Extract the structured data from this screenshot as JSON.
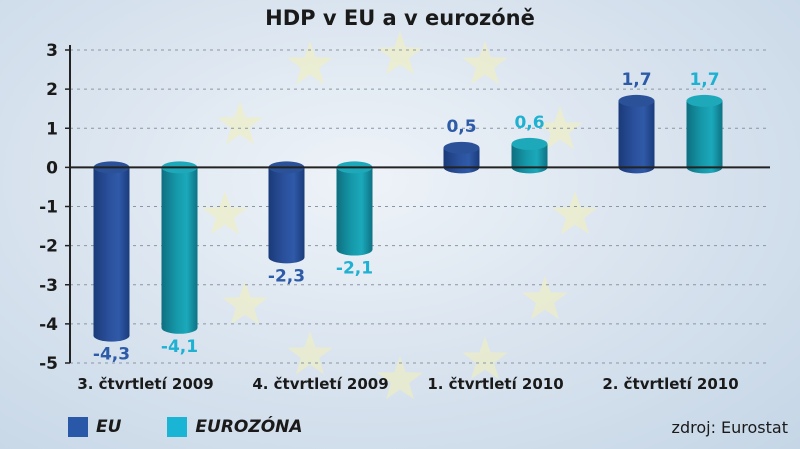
{
  "chart_data": {
    "type": "bar",
    "title": "HDP v EU a v eurozóně",
    "categories": [
      "3. čtvrtletí 2009",
      "4. čtvrtletí 2009",
      "1. čtvrtletí 2010",
      "2. čtvrtletí 2010"
    ],
    "series": [
      {
        "name": "EU",
        "values": [
          -4.3,
          -2.3,
          0.5,
          1.7
        ],
        "labels": [
          "-4,3",
          "-2,3",
          "0,5",
          "1,7"
        ],
        "color": "#2a4f9a",
        "label_color": "#2d5ba8"
      },
      {
        "name": "EUROZÓNA",
        "values": [
          -4.1,
          -2.1,
          0.6,
          1.7
        ],
        "labels": [
          "-4,1",
          "-2,1",
          "0,6",
          "1,7"
        ],
        "color": "#1597a8",
        "label_color": "#1fb1d2"
      }
    ],
    "ylim": [
      -5,
      3
    ],
    "yticks": [
      3,
      2,
      1,
      0,
      -1,
      -2,
      -3,
      -4,
      -5
    ],
    "grid": true,
    "legend": "bottom-left",
    "source": "zdroj: Eurostat"
  }
}
